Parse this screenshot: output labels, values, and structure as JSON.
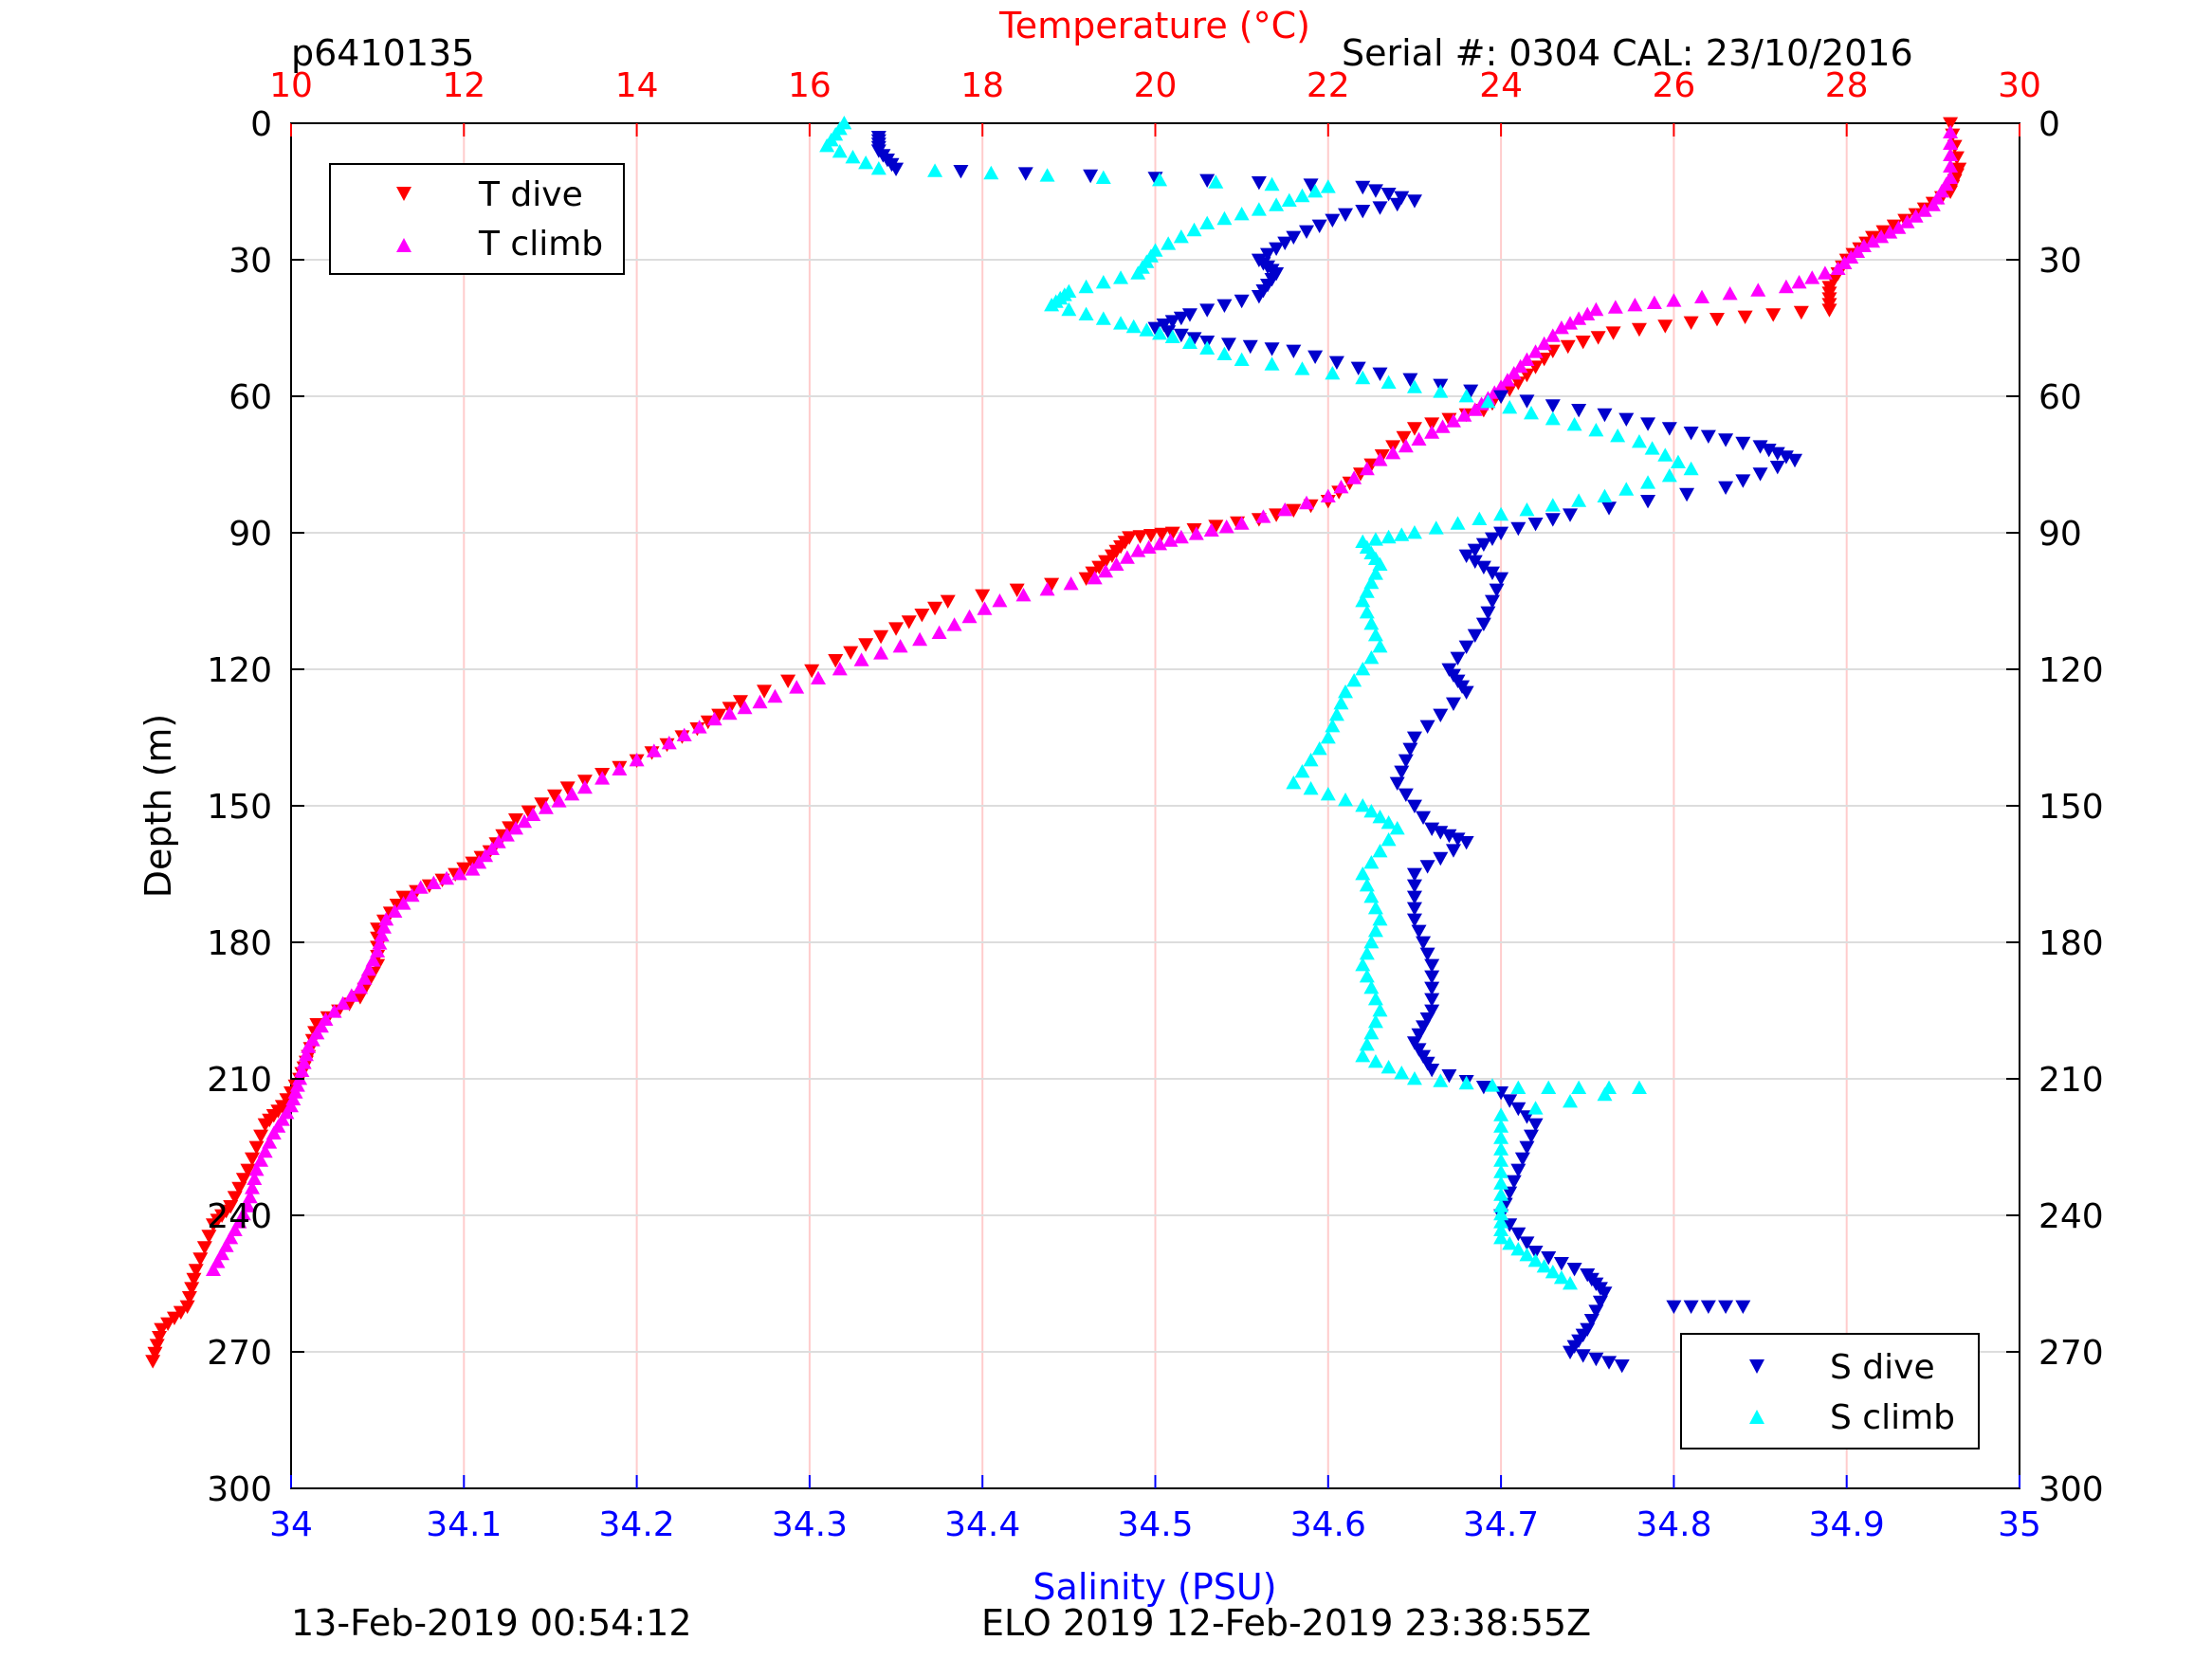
{
  "header": {
    "profile_id": "p6410135",
    "serial_cal": "Serial #: 0304  CAL: 23/10/2016"
  },
  "footer": {
    "plot_time": "13-Feb-2019 00:54:12",
    "mission": "ELO 2019 12-Feb-2019 23:38:55Z"
  },
  "colors": {
    "temperature_axis": "#ff0000",
    "salinity_axis": "#0000ff",
    "t_dive": "#ff0000",
    "t_climb": "#ff00ff",
    "s_dive": "#0000cc",
    "s_climb": "#00ffff",
    "grid_temp": "#ffcccc",
    "grid_depth": "#dddddd"
  },
  "chart_data": {
    "type": "scatter",
    "title_top_axis": "Temperature (°C)",
    "xlabel_bottom": "Salinity (PSU)",
    "ylabel": "Depth (m)",
    "temperature_axis": {
      "range": [
        10,
        30
      ],
      "ticks": [
        "10",
        "12",
        "14",
        "16",
        "18",
        "20",
        "22",
        "24",
        "26",
        "28",
        "30"
      ]
    },
    "salinity_axis": {
      "range": [
        34,
        35
      ],
      "ticks": [
        "34",
        "34.1",
        "34.2",
        "34.3",
        "34.4",
        "34.5",
        "34.6",
        "34.7",
        "34.8",
        "34.9",
        "35"
      ]
    },
    "depth_axis": {
      "range": [
        0,
        300
      ],
      "reversed": true,
      "ticks": [
        "0",
        "30",
        "60",
        "90",
        "120",
        "150",
        "180",
        "210",
        "240",
        "270",
        "300"
      ]
    },
    "legend_temperature": {
      "placement": "top-left",
      "entries": [
        "T dive",
        "T climb"
      ]
    },
    "legend_salinity": {
      "placement": "bottom-right",
      "entries": [
        "S dive",
        "S climb"
      ]
    },
    "series": [
      {
        "name": "T dive",
        "axis": "temperature",
        "marker": "triangle-down",
        "points": [
          [
            29.2,
            0
          ],
          [
            29.3,
            10
          ],
          [
            29.2,
            15
          ],
          [
            28.8,
            20
          ],
          [
            28.3,
            25
          ],
          [
            28.0,
            30
          ],
          [
            27.8,
            36
          ],
          [
            27.8,
            41
          ],
          [
            26.5,
            43
          ],
          [
            25.3,
            46
          ],
          [
            24.6,
            50
          ],
          [
            24.2,
            57
          ],
          [
            23.8,
            63
          ],
          [
            23.0,
            67
          ],
          [
            22.5,
            75
          ],
          [
            22.0,
            83
          ],
          [
            21.2,
            87
          ],
          [
            20.2,
            90
          ],
          [
            19.7,
            91
          ],
          [
            19.5,
            95
          ],
          [
            19.2,
            100
          ],
          [
            17.6,
            105
          ],
          [
            17.0,
            111
          ],
          [
            16.3,
            118
          ],
          [
            15.2,
            127
          ],
          [
            14.7,
            133
          ],
          [
            14.0,
            140
          ],
          [
            13.2,
            146
          ],
          [
            12.6,
            153
          ],
          [
            12.3,
            160
          ],
          [
            11.9,
            165
          ],
          [
            11.3,
            170
          ],
          [
            11.0,
            177
          ],
          [
            11.0,
            185
          ],
          [
            10.8,
            192
          ],
          [
            10.3,
            198
          ],
          [
            10.2,
            205
          ],
          [
            10.1,
            210
          ],
          [
            9.9,
            216
          ],
          [
            9.7,
            220
          ],
          [
            9.5,
            230
          ],
          [
            9.3,
            238
          ],
          [
            9.1,
            242
          ],
          [
            8.9,
            252
          ],
          [
            8.8,
            260
          ],
          [
            8.5,
            265
          ],
          [
            8.4,
            272
          ]
        ]
      },
      {
        "name": "T climb",
        "axis": "temperature",
        "marker": "triangle-up",
        "points": [
          [
            29.2,
            2
          ],
          [
            29.2,
            12
          ],
          [
            29.0,
            18
          ],
          [
            28.6,
            23
          ],
          [
            28.2,
            27
          ],
          [
            27.9,
            32
          ],
          [
            27.3,
            36
          ],
          [
            26.0,
            39
          ],
          [
            25.1,
            41
          ],
          [
            24.7,
            45
          ],
          [
            24.3,
            52
          ],
          [
            24.0,
            58
          ],
          [
            23.7,
            63
          ],
          [
            23.2,
            68
          ],
          [
            22.6,
            74
          ],
          [
            22.0,
            82
          ],
          [
            21.0,
            88
          ],
          [
            20.3,
            91
          ],
          [
            19.8,
            94
          ],
          [
            19.3,
            100
          ],
          [
            18.2,
            105
          ],
          [
            17.5,
            112
          ],
          [
            16.6,
            118
          ],
          [
            15.6,
            126
          ],
          [
            14.9,
            131
          ],
          [
            14.2,
            138
          ],
          [
            13.4,
            146
          ],
          [
            12.8,
            152
          ],
          [
            12.4,
            158
          ],
          [
            12.1,
            164
          ],
          [
            11.5,
            168
          ],
          [
            11.1,
            175
          ],
          [
            11.0,
            182
          ],
          [
            10.8,
            190
          ],
          [
            10.4,
            197
          ],
          [
            10.2,
            203
          ],
          [
            10.1,
            210
          ],
          [
            10.0,
            216
          ],
          [
            9.8,
            222
          ],
          [
            9.6,
            230
          ],
          [
            9.5,
            238
          ],
          [
            9.3,
            245
          ],
          [
            9.1,
            252
          ]
        ]
      },
      {
        "name": "S dive",
        "axis": "salinity",
        "marker": "triangle-down",
        "points": [
          [
            34.34,
            3
          ],
          [
            34.34,
            6
          ],
          [
            34.35,
            10
          ],
          [
            34.5,
            12
          ],
          [
            34.62,
            14
          ],
          [
            34.65,
            17
          ],
          [
            34.61,
            20
          ],
          [
            34.58,
            25
          ],
          [
            34.56,
            30
          ],
          [
            34.57,
            33
          ],
          [
            34.56,
            38
          ],
          [
            34.52,
            42
          ],
          [
            34.5,
            45
          ],
          [
            34.53,
            48
          ],
          [
            34.58,
            50
          ],
          [
            34.63,
            55
          ],
          [
            34.7,
            60
          ],
          [
            34.76,
            64
          ],
          [
            34.81,
            68
          ],
          [
            34.85,
            71
          ],
          [
            34.87,
            74
          ],
          [
            34.83,
            80
          ],
          [
            34.74,
            86
          ],
          [
            34.7,
            90
          ],
          [
            34.68,
            95
          ],
          [
            34.7,
            100
          ],
          [
            34.69,
            110
          ],
          [
            34.67,
            120
          ],
          [
            34.68,
            125
          ],
          [
            34.65,
            135
          ],
          [
            34.64,
            145
          ],
          [
            34.66,
            155
          ],
          [
            34.68,
            158
          ],
          [
            34.65,
            165
          ],
          [
            34.65,
            175
          ],
          [
            34.66,
            185
          ],
          [
            34.66,
            195
          ],
          [
            34.65,
            202
          ],
          [
            34.66,
            208
          ],
          [
            34.7,
            213
          ],
          [
            34.72,
            220
          ],
          [
            34.71,
            230
          ],
          [
            34.7,
            240
          ],
          [
            34.72,
            248
          ],
          [
            34.75,
            253
          ],
          [
            34.76,
            257
          ],
          [
            34.75,
            265
          ],
          [
            34.74,
            270
          ],
          [
            34.77,
            273
          ],
          [
            34.84,
            260
          ],
          [
            34.8,
            260
          ]
        ]
      },
      {
        "name": "S climb",
        "axis": "salinity",
        "marker": "triangle-up",
        "points": [
          [
            34.32,
            0
          ],
          [
            34.31,
            5
          ],
          [
            34.34,
            10
          ],
          [
            34.47,
            12
          ],
          [
            34.6,
            14
          ],
          [
            34.57,
            18
          ],
          [
            34.53,
            22
          ],
          [
            34.5,
            28
          ],
          [
            34.49,
            33
          ],
          [
            34.45,
            37
          ],
          [
            34.44,
            40
          ],
          [
            34.48,
            44
          ],
          [
            34.51,
            47
          ],
          [
            34.55,
            52
          ],
          [
            34.62,
            56
          ],
          [
            34.68,
            60
          ],
          [
            34.73,
            65
          ],
          [
            34.78,
            70
          ],
          [
            34.81,
            76
          ],
          [
            34.76,
            82
          ],
          [
            34.7,
            86
          ],
          [
            34.65,
            90
          ],
          [
            34.62,
            92
          ],
          [
            34.63,
            97
          ],
          [
            34.62,
            105
          ],
          [
            34.63,
            115
          ],
          [
            34.61,
            125
          ],
          [
            34.6,
            135
          ],
          [
            34.58,
            145
          ],
          [
            34.62,
            150
          ],
          [
            34.64,
            155
          ],
          [
            34.62,
            165
          ],
          [
            34.63,
            175
          ],
          [
            34.62,
            185
          ],
          [
            34.63,
            195
          ],
          [
            34.62,
            205
          ],
          [
            34.65,
            210
          ],
          [
            34.71,
            212
          ],
          [
            34.78,
            212
          ],
          [
            34.7,
            218
          ],
          [
            34.7,
            228
          ],
          [
            34.7,
            238
          ],
          [
            34.7,
            245
          ],
          [
            34.72,
            250
          ],
          [
            34.74,
            255
          ]
        ]
      }
    ]
  }
}
